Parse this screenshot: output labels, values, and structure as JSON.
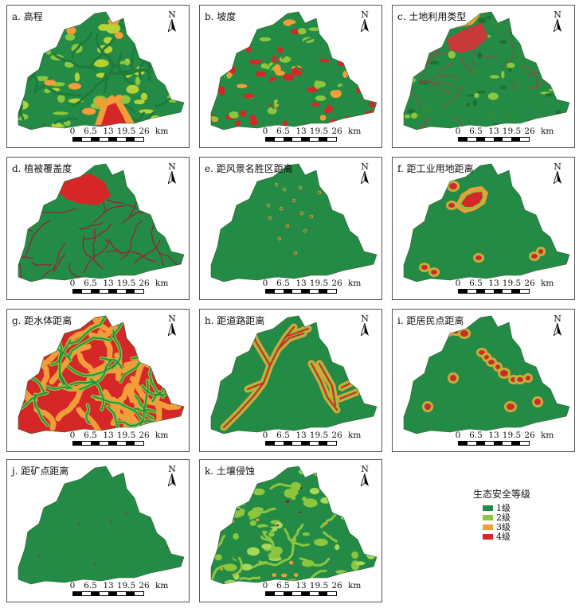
{
  "panels": [
    {
      "id": "a",
      "title": "a. 高程",
      "style": "elevation"
    },
    {
      "id": "b",
      "title": "b. 坡度",
      "style": "slope"
    },
    {
      "id": "c",
      "title": "c. 土地利用类型",
      "style": "landuse"
    },
    {
      "id": "d",
      "title": "d. 植被覆盖度",
      "style": "veg"
    },
    {
      "id": "e",
      "title": "e. 距风景名胜区距离",
      "style": "scenic"
    },
    {
      "id": "f",
      "title": "f. 距工业用地距离",
      "style": "industry"
    },
    {
      "id": "g",
      "title": "g. 距水体距离",
      "style": "water"
    },
    {
      "id": "h",
      "title": "h. 距道路距离",
      "style": "road"
    },
    {
      "id": "i",
      "title": "i. 距居民点距离",
      "style": "settle"
    },
    {
      "id": "j",
      "title": "j. 距矿点距离",
      "style": "mine"
    },
    {
      "id": "k",
      "title": "k. 土壤侵蚀",
      "style": "erosion"
    }
  ],
  "north_label": "N",
  "scale_labels": [
    "0",
    "6.5",
    "13",
    "19.5",
    "26",
    "km"
  ],
  "legend": {
    "title": "生态安全等级",
    "items": [
      {
        "label": "1级",
        "color": "#238b45"
      },
      {
        "label": "2级",
        "color": "#8cc63f"
      },
      {
        "label": "3级",
        "color": "#f39c3a"
      },
      {
        "label": "4级",
        "color": "#d62728"
      }
    ]
  }
}
